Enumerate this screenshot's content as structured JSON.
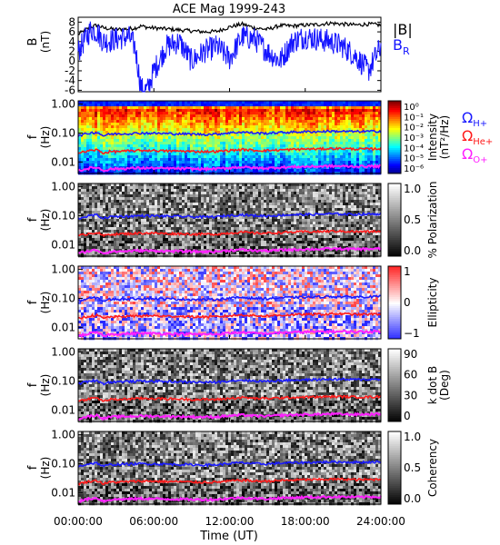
{
  "title": "ACE Mag 1999-243",
  "xlabel": "Time (UT)",
  "x_ticks": [
    "00:00:00",
    "06:00:00",
    "12:00:00",
    "18:00:00",
    "24:00:00"
  ],
  "colors": {
    "B_total": "#000000",
    "B_R": "#1414ff",
    "H_plus": "#1a1aff",
    "He_plus": "#ff1a1a",
    "O_plus": "#ff20ff",
    "background": "#ffffff"
  },
  "chart_data": [
    {
      "type": "line",
      "panel": "magnetic field",
      "ylabel_top": "B",
      "ylabel_unit": "(nT)",
      "y_ticks": [
        "8",
        "6",
        "4",
        "2",
        "0",
        "-2",
        "-4",
        "-6"
      ],
      "ylim": [
        -6.3,
        9
      ],
      "x_hours": [
        0,
        1,
        1.5,
        2,
        3,
        4,
        4.5,
        5,
        5.5,
        6,
        7,
        8,
        9,
        10,
        11,
        12,
        13,
        14,
        15,
        16,
        17,
        18,
        19,
        20,
        21,
        22,
        23,
        24
      ],
      "series": [
        {
          "name": "|B|",
          "values": [
            5.5,
            7.0,
            7.4,
            6.8,
            6.5,
            6.6,
            6.8,
            7.2,
            6.9,
            6.8,
            6.6,
            6.4,
            6.2,
            6.0,
            6.1,
            7.0,
            7.6,
            6.8,
            6.5,
            7.3,
            7.2,
            7.4,
            7.5,
            7.8,
            7.6,
            7.4,
            7.6,
            7.4
          ]
        },
        {
          "name": "B_R",
          "values": [
            2.0,
            6.5,
            6.0,
            4.0,
            4.5,
            5.0,
            3.0,
            -5.8,
            -5.9,
            -2.0,
            3.0,
            4.0,
            0.0,
            2.0,
            3.0,
            0.5,
            5.0,
            4.5,
            2.0,
            0.0,
            4.0,
            5.0,
            4.5,
            4.0,
            3.0,
            1.0,
            -2.0,
            3.0
          ]
        }
      ],
      "legend": [
        "|B|",
        "B",
        "R"
      ]
    },
    {
      "type": "heatmap",
      "panel": "power spectral density",
      "ylabel_top": "f",
      "ylabel_unit": "(Hz)",
      "y_ticks": [
        "1.00",
        "0.10",
        "0.01"
      ],
      "ylim_hz": [
        0.004,
        1.3
      ],
      "scale": "log",
      "colorbar_title": "Intensity",
      "colorbar_unit": "(nT²/Hz)",
      "colorbar_ticks": [
        "10⁰",
        "10⁻¹",
        "10⁻²",
        "10⁻³",
        "10⁻⁴",
        "10⁻⁵",
        "10⁻⁶"
      ],
      "colorbar_range": [
        -6.5,
        0
      ],
      "legend": [
        {
          "symbol": "Ω",
          "sub": "H+"
        },
        {
          "symbol": "Ω",
          "sub": "He+"
        },
        {
          "symbol": "Ω",
          "sub": "O+"
        }
      ]
    },
    {
      "type": "heatmap",
      "panel": "polarization",
      "ylabel_top": "f",
      "ylabel_unit": "(Hz)",
      "y_ticks": [
        "1.00",
        "0.10",
        "0.01"
      ],
      "colorbar_title": "% Polarization",
      "colorbar_ticks": [
        "1.0",
        "0.5",
        "0.0"
      ],
      "colorbar_range": [
        0,
        1
      ]
    },
    {
      "type": "heatmap",
      "panel": "ellipticity",
      "ylabel_top": "f",
      "ylabel_unit": "(Hz)",
      "y_ticks": [
        "1.00",
        "0.10",
        "0.01"
      ],
      "colorbar_title": "Ellipticity",
      "colorbar_ticks": [
        "1",
        "0",
        "−1"
      ],
      "colorbar_range": [
        -1,
        1
      ]
    },
    {
      "type": "heatmap",
      "panel": "wave normal angle",
      "ylabel_top": "f",
      "ylabel_unit": "(Hz)",
      "y_ticks": [
        "1.00",
        "0.10",
        "0.01"
      ],
      "colorbar_title": "k dot B",
      "colorbar_unit": "(Deg)",
      "colorbar_ticks": [
        "90",
        "60",
        "30",
        "0"
      ],
      "colorbar_range": [
        0,
        90
      ]
    },
    {
      "type": "heatmap",
      "panel": "coherency",
      "ylabel_top": "f",
      "ylabel_unit": "(Hz)",
      "y_ticks": [
        "1.00",
        "0.10",
        "0.01"
      ],
      "colorbar_title": "Coherency",
      "colorbar_ticks": [
        "1.0",
        "0.5",
        "0.0"
      ],
      "colorbar_range": [
        0,
        1
      ]
    }
  ],
  "gyrofrequency_lines_hz": {
    "x_hours": [
      0,
      1,
      1.5,
      2,
      2.5,
      3,
      4,
      5,
      6,
      7,
      8,
      9,
      10,
      11,
      12,
      13,
      14,
      15,
      16,
      17,
      18,
      19,
      20,
      21,
      22,
      23,
      24
    ],
    "H_plus": [
      0.08,
      0.102,
      0.105,
      0.08,
      0.092,
      0.094,
      0.096,
      0.1,
      0.098,
      0.096,
      0.094,
      0.092,
      0.09,
      0.092,
      0.102,
      0.108,
      0.1,
      0.098,
      0.104,
      0.108,
      0.11,
      0.112,
      0.116,
      0.114,
      0.112,
      0.114,
      0.116
    ],
    "He_plus": [
      0.02,
      0.025,
      0.026,
      0.02,
      0.023,
      0.023,
      0.024,
      0.025,
      0.025,
      0.024,
      0.024,
      0.023,
      0.023,
      0.023,
      0.025,
      0.027,
      0.025,
      0.025,
      0.026,
      0.027,
      0.028,
      0.028,
      0.029,
      0.029,
      0.028,
      0.028,
      0.029
    ],
    "O_plus": [
      0.005,
      0.0062,
      0.0065,
      0.005,
      0.0057,
      0.0058,
      0.006,
      0.0062,
      0.0061,
      0.006,
      0.0059,
      0.0058,
      0.0057,
      0.0058,
      0.0063,
      0.0067,
      0.0062,
      0.0061,
      0.0065,
      0.0067,
      0.0069,
      0.007,
      0.0072,
      0.0071,
      0.007,
      0.0071,
      0.0072
    ]
  }
}
